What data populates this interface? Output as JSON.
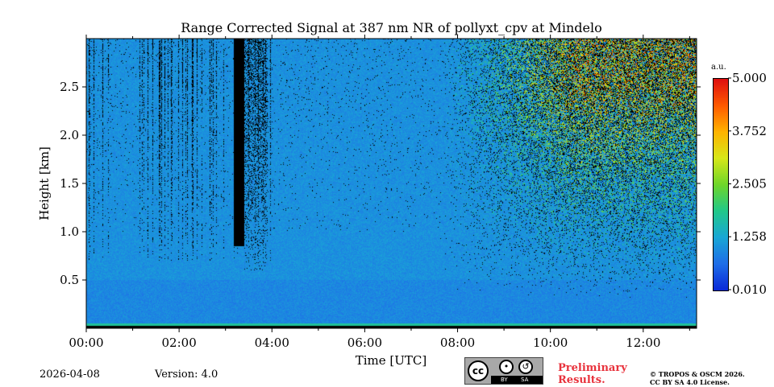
{
  "chart_data": {
    "type": "heatmap",
    "title": "Range Corrected Signal at 387 nm NR of pollyxt_cpv at Mindelo",
    "xlabel": "Time [UTC]",
    "ylabel": "Height [km]",
    "xlim_hours": [
      0,
      13.15
    ],
    "ylim_km": [
      0,
      3.0
    ],
    "x_ticks": [
      {
        "value": 0,
        "label": "00:00"
      },
      {
        "value": 2,
        "label": "02:00"
      },
      {
        "value": 4,
        "label": "04:00"
      },
      {
        "value": 6,
        "label": "06:00"
      },
      {
        "value": 8,
        "label": "08:00"
      },
      {
        "value": 10,
        "label": "10:00"
      },
      {
        "value": 12,
        "label": "12:00"
      }
    ],
    "y_ticks": [
      {
        "value": 0.5,
        "label": "0.5"
      },
      {
        "value": 1.0,
        "label": "1.0"
      },
      {
        "value": 1.5,
        "label": "1.5"
      },
      {
        "value": 2.0,
        "label": "2.0"
      },
      {
        "value": 2.5,
        "label": "2.5"
      }
    ],
    "colorbar": {
      "unit_label": "a.u.",
      "range": [
        0.01,
        5.0
      ],
      "ticks": [
        {
          "value": 0.01,
          "label": "0.010"
        },
        {
          "value": 1.258,
          "label": "1.258"
        },
        {
          "value": 2.505,
          "label": "2.505"
        },
        {
          "value": 3.752,
          "label": "3.752"
        },
        {
          "value": 5.0,
          "label": "5.000"
        }
      ],
      "colors": [
        "#0b2bd8",
        "#1f6ee8",
        "#19a8d6",
        "#22c98a",
        "#6fd62a",
        "#d8e81a",
        "#ffb400",
        "#ff5a00",
        "#e01010"
      ]
    },
    "features": {
      "background_signal": 0.2,
      "cloud_block_hours": [
        3.18,
        3.4
      ],
      "cloud_block_base_km": 0.85,
      "noise_onset_hours": 7.5,
      "surface_layer_km": 0.05
    }
  },
  "footer": {
    "date": "2026-04-08",
    "version": "Version: 4.0",
    "preliminary_line1": "Preliminary",
    "preliminary_line2": "Results.",
    "copyright_line1": "© TROPOS & OSCM 2026.",
    "copyright_line2": "CC BY SA 4.0 License.",
    "cc_logo_text": "cc",
    "cc_by_text": "BY",
    "cc_sa_text": "SA"
  },
  "colors": {
    "background_blue": "#1450dc",
    "noise_black": "#000000"
  }
}
